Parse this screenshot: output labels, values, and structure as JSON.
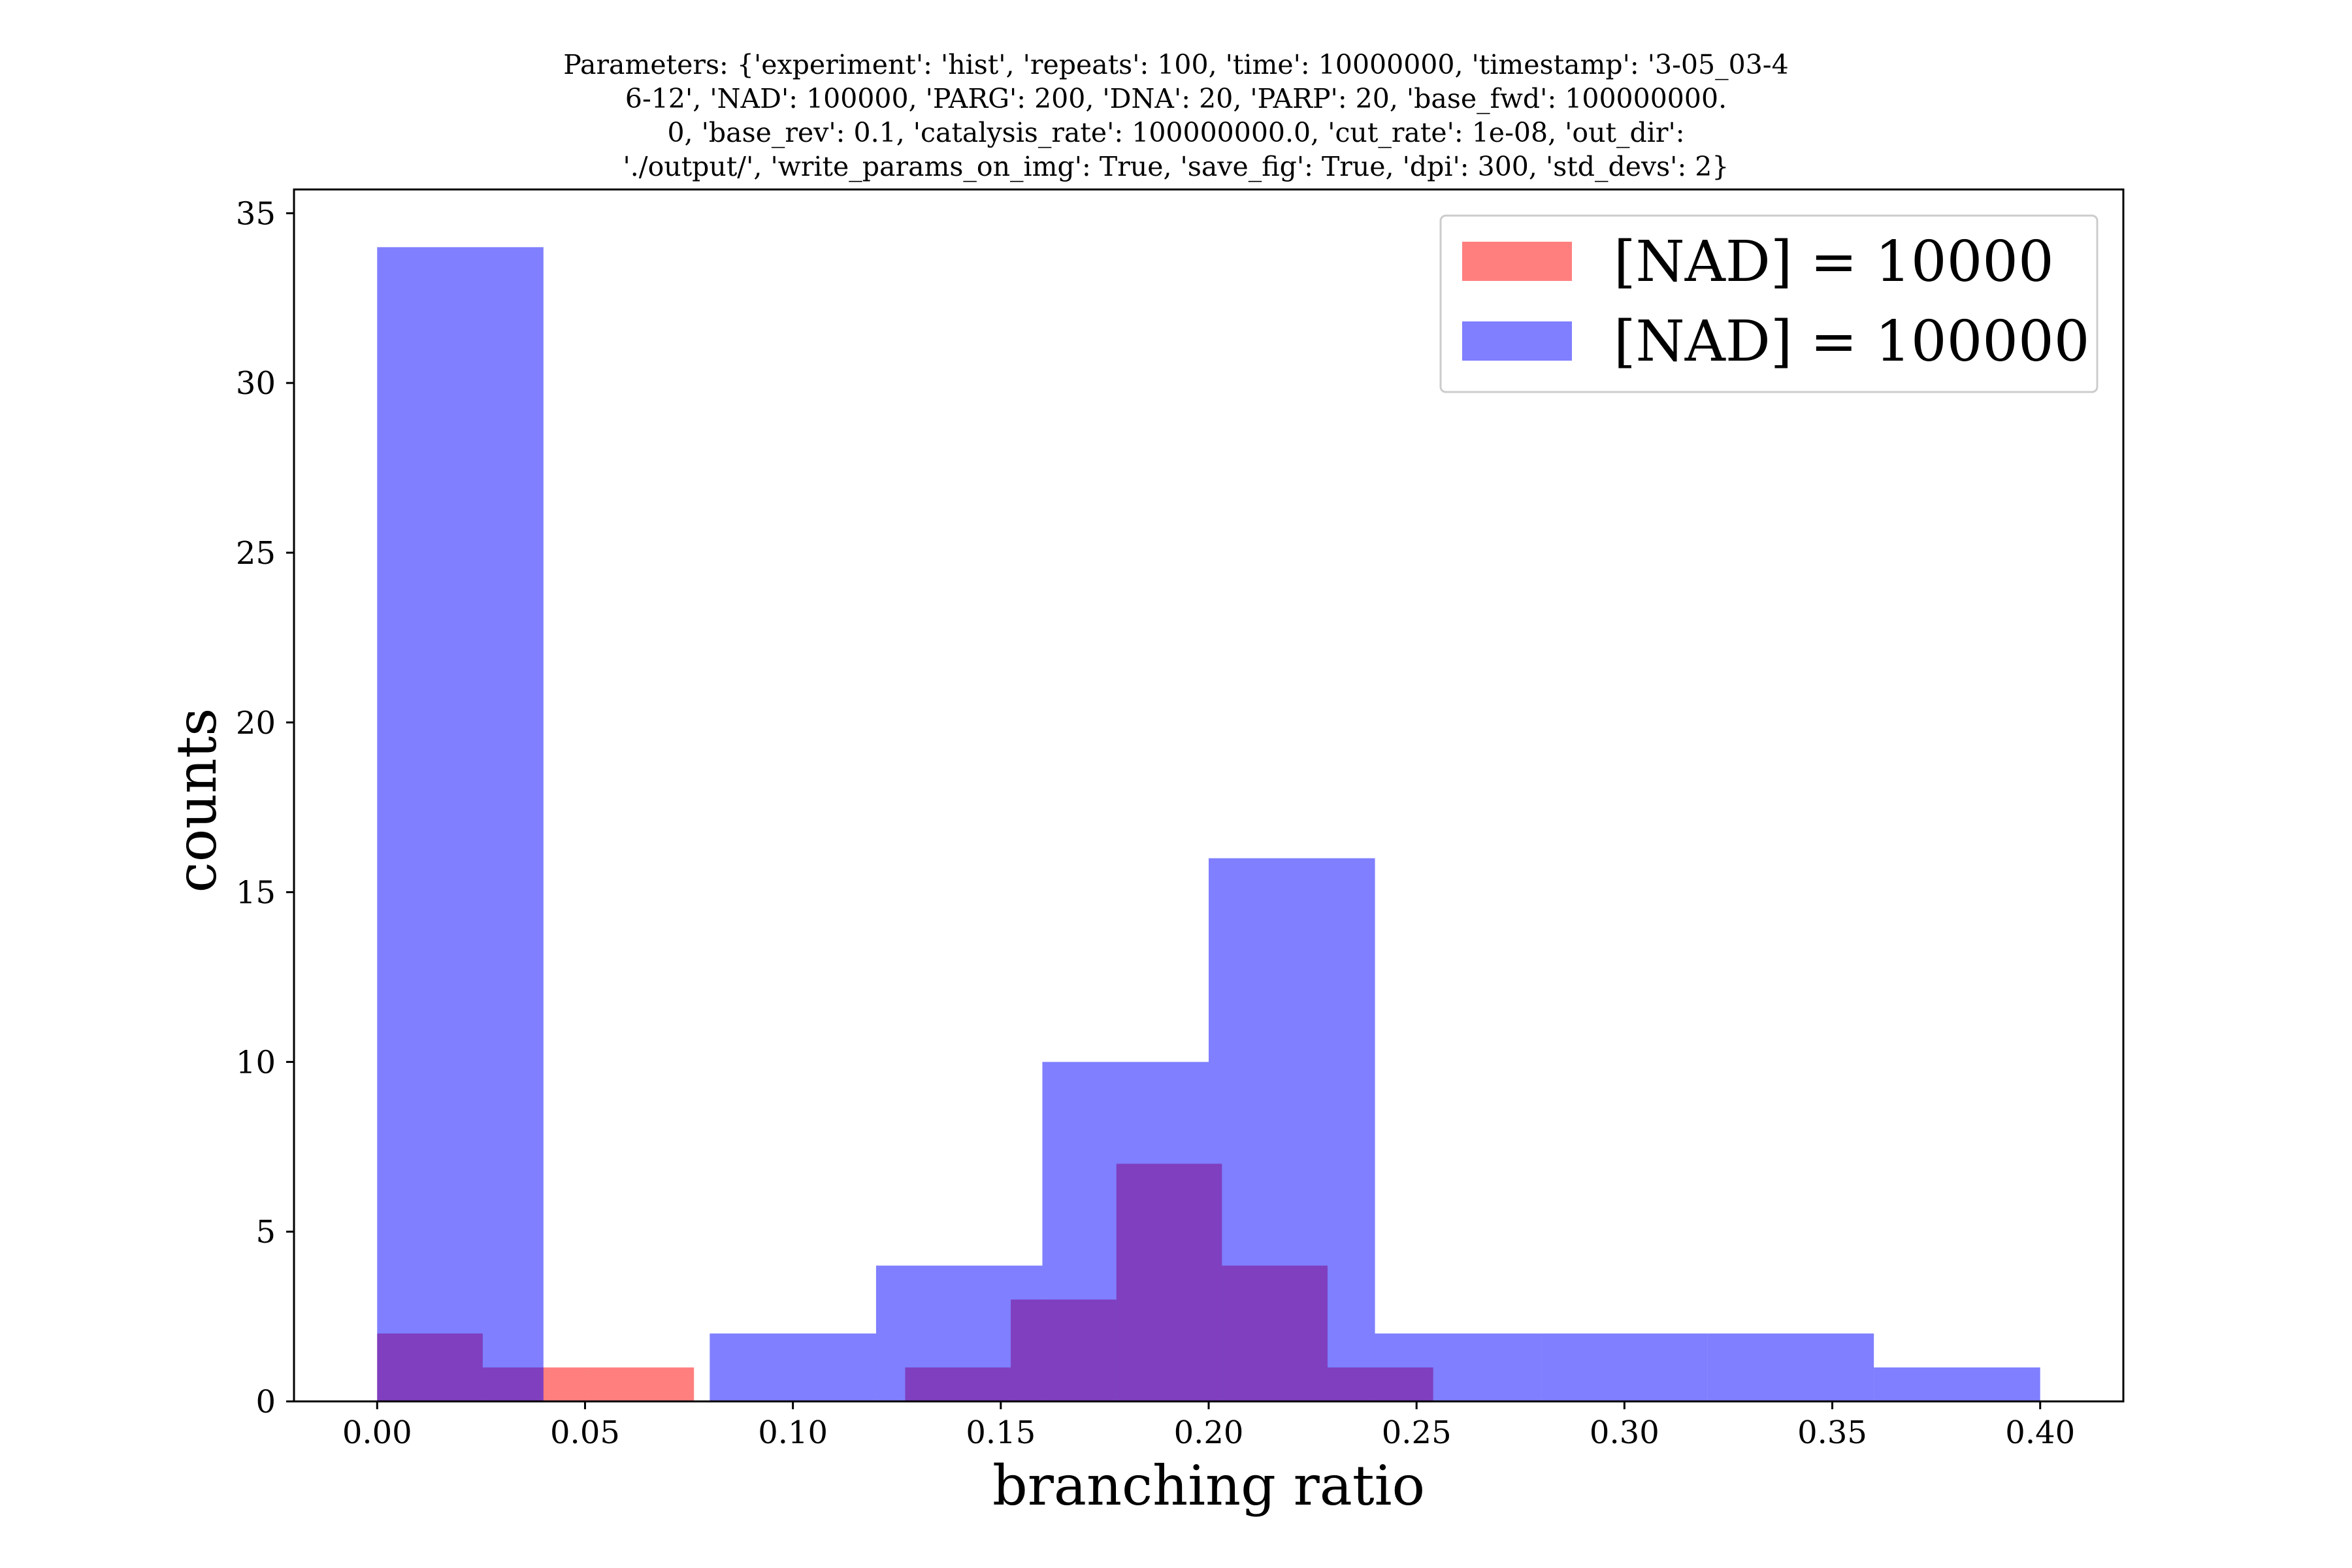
{
  "chart_data": {
    "type": "bar",
    "subtype": "overlapping-histogram",
    "title_lines": [
      "Parameters: {'experiment': 'hist', 'repeats': 100, 'time': 10000000, 'timestamp': '3-05_03-4",
      "6-12', 'NAD': 100000, 'PARG': 200, 'DNA': 20, 'PARP': 20, 'base_fwd': 100000000.",
      "0, 'base_rev': 0.1, 'catalysis_rate': 100000000.0, 'cut_rate': 1e-08, 'out_dir':",
      "'./output/', 'write_params_on_img': True, 'save_fig': True, 'dpi': 300, 'std_devs': 2}"
    ],
    "xlabel": "branching ratio",
    "ylabel": "counts",
    "xlim": [
      -0.02,
      0.42
    ],
    "ylim": [
      0,
      35.7
    ],
    "xticks": [
      0.0,
      0.05,
      0.1,
      0.15,
      0.2,
      0.25,
      0.3,
      0.35,
      0.4
    ],
    "xtick_labels": [
      "0.00",
      "0.05",
      "0.10",
      "0.15",
      "0.20",
      "0.25",
      "0.30",
      "0.35",
      "0.40"
    ],
    "yticks": [
      0,
      5,
      10,
      15,
      20,
      25,
      30,
      35
    ],
    "ytick_labels": [
      "0",
      "5",
      "10",
      "15",
      "20",
      "25",
      "30",
      "35"
    ],
    "grid": false,
    "legend_position": "upper-right",
    "series": [
      {
        "name": "[NAD] = 10000",
        "color": "#ff0000",
        "alpha": 0.5,
        "bin_edges": [
          0.0,
          0.0254,
          0.0508,
          0.0762,
          0.1016,
          0.127,
          0.1524,
          0.1778,
          0.2032,
          0.2286,
          0.254
        ],
        "counts": [
          2,
          1,
          1,
          0,
          0,
          1,
          3,
          7,
          4,
          1
        ]
      },
      {
        "name": "[NAD] = 100000",
        "color": "#0000ff",
        "alpha": 0.5,
        "bin_edges": [
          0.0,
          0.04,
          0.08,
          0.12,
          0.16,
          0.2,
          0.24,
          0.28,
          0.32,
          0.36,
          0.4
        ],
        "counts": [
          34,
          0,
          2,
          4,
          10,
          16,
          2,
          2,
          2,
          1
        ]
      }
    ]
  }
}
